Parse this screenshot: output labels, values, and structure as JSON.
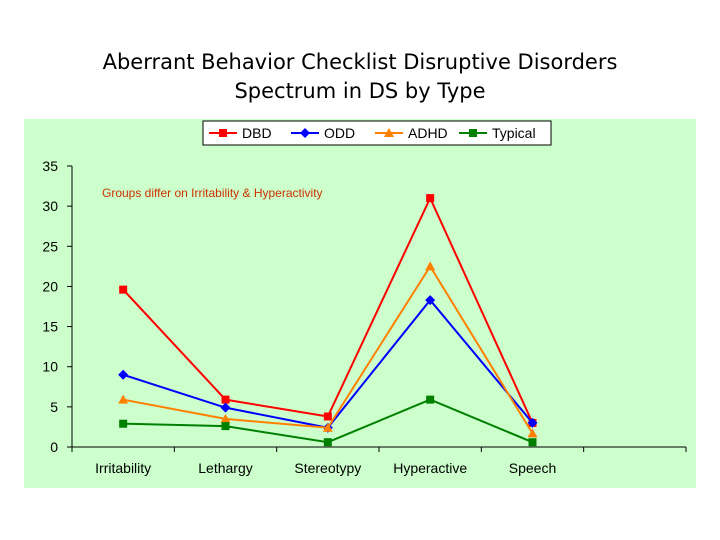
{
  "slide": {
    "title_line1": "Aberrant Behavior Checklist Disruptive Disorders",
    "title_line2": "Spectrum in DS by Type"
  },
  "chart_data": {
    "type": "line",
    "categories": [
      "Irritability",
      "Lethargy",
      "Stereotypy",
      "Hyperactive",
      "Speech"
    ],
    "ylim": [
      0,
      35
    ],
    "yticks": [
      0,
      5,
      10,
      15,
      20,
      25,
      30,
      35
    ],
    "grid": false,
    "legend": "top",
    "annotation": "Groups differ on Irritability & Hyperactivity",
    "background_color": "#ccffcc",
    "series": [
      {
        "name": "DBD",
        "color": "#ff0000",
        "marker": "square",
        "values": [
          19.6,
          5.9,
          3.8,
          31.0,
          3.0
        ]
      },
      {
        "name": "ODD",
        "color": "#0000ff",
        "marker": "diamond",
        "values": [
          9.0,
          4.9,
          2.4,
          18.3,
          3.0
        ]
      },
      {
        "name": "ADHD",
        "color": "#ff8000",
        "marker": "triangle",
        "values": [
          5.9,
          3.5,
          2.4,
          22.5,
          1.7
        ]
      },
      {
        "name": "Typical",
        "color": "#008000",
        "marker": "square",
        "values": [
          2.9,
          2.6,
          0.6,
          5.9,
          0.6
        ]
      }
    ]
  }
}
